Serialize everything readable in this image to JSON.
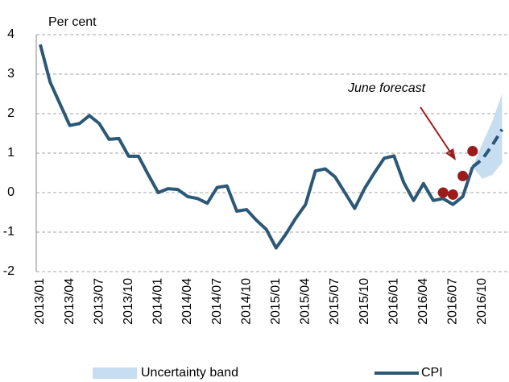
{
  "chart_data": {
    "type": "line",
    "y_label": "Per cent",
    "categories": [
      "2013/01",
      null,
      null,
      "2013/04",
      null,
      null,
      "2013/07",
      null,
      null,
      "2013/10",
      null,
      null,
      "2014/01",
      null,
      null,
      "2014/04",
      null,
      null,
      "2014/07",
      null,
      null,
      "2014/10",
      null,
      null,
      "2015/01",
      null,
      null,
      "2015/04",
      null,
      null,
      "2015/07",
      null,
      null,
      "2015/10",
      null,
      null,
      "2016/01",
      null,
      null,
      "2016/04",
      null,
      null,
      "2016/07",
      null,
      null,
      "2016/10",
      null,
      null
    ],
    "series": [
      {
        "name": "CPI",
        "color": "#2b5876",
        "values": [
          3.75,
          2.8,
          2.25,
          1.7,
          1.75,
          1.95,
          1.75,
          1.35,
          1.37,
          0.92,
          0.92,
          0.45,
          0.0,
          0.1,
          0.08,
          -0.1,
          -0.15,
          -0.27,
          0.13,
          0.17,
          -0.47,
          -0.43,
          -0.7,
          -0.93,
          -1.4,
          -1.05,
          -0.65,
          -0.3,
          0.55,
          0.6,
          0.4,
          0.0,
          -0.4,
          0.1,
          0.5,
          0.87,
          0.93,
          0.25,
          -0.2,
          0.23,
          -0.2,
          -0.15,
          -0.3,
          -0.1,
          0.65,
          null,
          null,
          null
        ]
      }
    ],
    "forecast": {
      "color": "#2b5876",
      "dashed": true,
      "values": [
        null,
        null,
        null,
        null,
        null,
        null,
        null,
        null,
        null,
        null,
        null,
        null,
        null,
        null,
        null,
        null,
        null,
        null,
        null,
        null,
        null,
        null,
        null,
        null,
        null,
        null,
        null,
        null,
        null,
        null,
        null,
        null,
        null,
        null,
        null,
        null,
        null,
        null,
        null,
        null,
        null,
        null,
        null,
        null,
        0.65,
        0.85,
        1.2,
        1.6
      ]
    },
    "band": {
      "name": "Uncertainty band",
      "color": "#c7ddf0",
      "lower": [
        null,
        null,
        null,
        null,
        null,
        null,
        null,
        null,
        null,
        null,
        null,
        null,
        null,
        null,
        null,
        null,
        null,
        null,
        null,
        null,
        null,
        null,
        null,
        null,
        null,
        null,
        null,
        null,
        null,
        null,
        null,
        null,
        null,
        null,
        null,
        null,
        null,
        null,
        null,
        null,
        null,
        null,
        null,
        null,
        0.65,
        0.35,
        0.45,
        0.75
      ],
      "upper": [
        null,
        null,
        null,
        null,
        null,
        null,
        null,
        null,
        null,
        null,
        null,
        null,
        null,
        null,
        null,
        null,
        null,
        null,
        null,
        null,
        null,
        null,
        null,
        null,
        null,
        null,
        null,
        null,
        null,
        null,
        null,
        null,
        null,
        null,
        null,
        null,
        null,
        null,
        null,
        null,
        null,
        null,
        null,
        null,
        0.65,
        1.25,
        1.8,
        2.5
      ]
    },
    "points": {
      "color": "#9b1b1b",
      "values": [
        null,
        null,
        null,
        null,
        null,
        null,
        null,
        null,
        null,
        null,
        null,
        null,
        null,
        null,
        null,
        null,
        null,
        null,
        null,
        null,
        null,
        null,
        null,
        null,
        null,
        null,
        null,
        null,
        null,
        null,
        null,
        null,
        null,
        null,
        null,
        null,
        null,
        null,
        null,
        null,
        null,
        0.0,
        -0.05,
        0.42,
        1.05,
        null,
        null,
        null
      ]
    },
    "annotation": "June forecast",
    "ylim": [
      -2,
      4
    ],
    "yticks": [
      -2,
      -1,
      0,
      1,
      2,
      3,
      4
    ],
    "grid": true,
    "legend": "bottom"
  }
}
